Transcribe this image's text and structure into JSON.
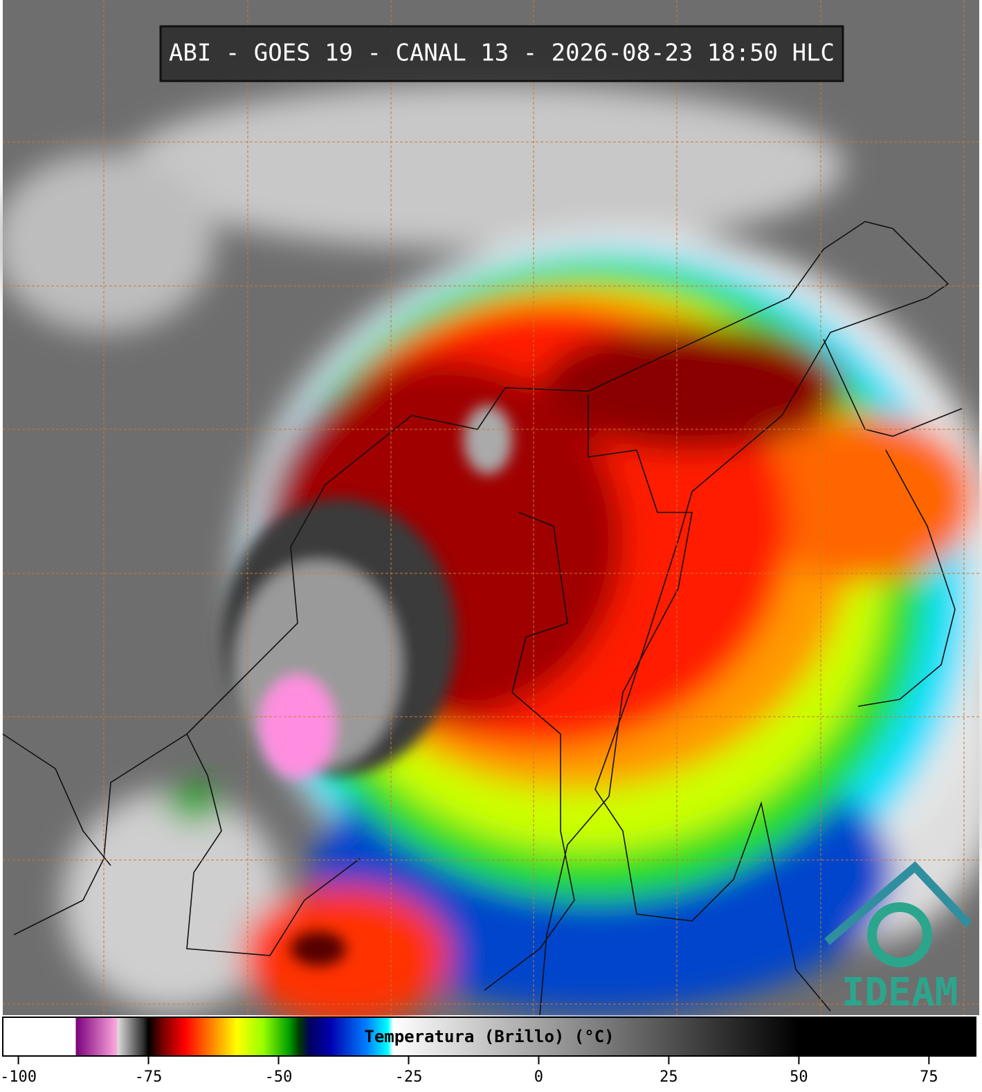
{
  "title": "ABI - GOES 19 - CANAL 13 - 2026-08-23 18:50 HLC",
  "logo": "IDEAM",
  "colorbar": {
    "label": "Temperatura (Brillo) (°C)",
    "range": [
      -103,
      84
    ],
    "ticks": [
      -100,
      -75,
      -50,
      -25,
      0,
      25,
      50,
      75
    ],
    "stops": [
      {
        "value": -103,
        "color": "#ffffff"
      },
      {
        "value": -89,
        "color": "#ffffff"
      },
      {
        "value": -89,
        "color": "#7a007a"
      },
      {
        "value": -81,
        "color": "#ffaae0"
      },
      {
        "value": -81,
        "color": "#e0e0e0"
      },
      {
        "value": -76,
        "color": "#303030"
      },
      {
        "value": -75,
        "color": "#000000"
      },
      {
        "value": -72,
        "color": "#800000"
      },
      {
        "value": -68,
        "color": "#ff0000"
      },
      {
        "value": -62,
        "color": "#ff9900"
      },
      {
        "value": -58,
        "color": "#ffff00"
      },
      {
        "value": -53,
        "color": "#99ff00"
      },
      {
        "value": -48,
        "color": "#00a000"
      },
      {
        "value": -46,
        "color": "#003a00"
      },
      {
        "value": -44,
        "color": "#000060"
      },
      {
        "value": -40,
        "color": "#0000b0"
      },
      {
        "value": -33,
        "color": "#0080ff"
      },
      {
        "value": -29,
        "color": "#00ffff"
      },
      {
        "value": -28,
        "color": "#ffffff"
      },
      {
        "value": 50,
        "color": "#000000"
      },
      {
        "value": 84,
        "color": "#000000"
      }
    ]
  }
}
